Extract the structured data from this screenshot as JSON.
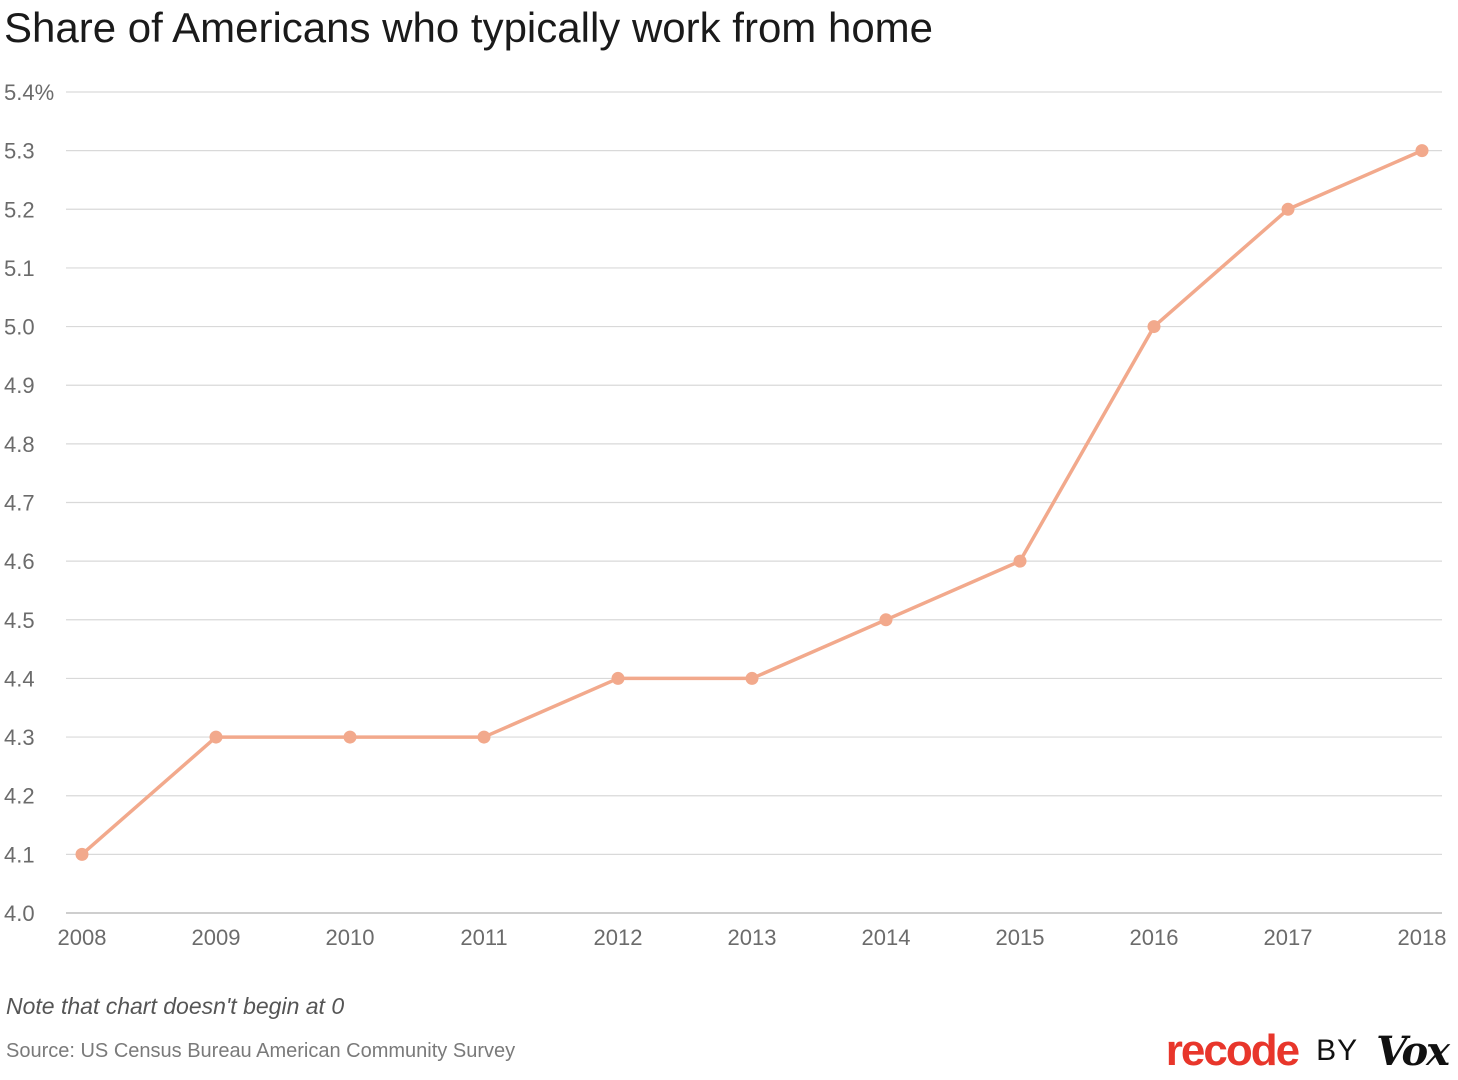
{
  "chart_data": {
    "type": "line",
    "title": "Share of Americans who typically work from home",
    "x": [
      "2008",
      "2009",
      "2010",
      "2011",
      "2012",
      "2013",
      "2014",
      "2015",
      "2016",
      "2017",
      "2018"
    ],
    "series": [
      {
        "values": [
          4.1,
          4.3,
          4.3,
          4.3,
          4.4,
          4.4,
          4.5,
          4.6,
          5.0,
          5.2,
          5.3
        ]
      }
    ],
    "yticks": [
      "4.0",
      "4.1",
      "4.2",
      "4.3",
      "4.4",
      "4.5",
      "4.6",
      "4.7",
      "4.8",
      "4.9",
      "5.0",
      "5.1",
      "5.2",
      "5.3",
      "5.4%"
    ],
    "ylim": [
      4.0,
      5.4
    ],
    "grid": true,
    "line_color": "#f2a98c",
    "grid_color": "#d9d9d9"
  },
  "footer": {
    "note": "Note that chart doesn't begin at 0",
    "source": "Source: US Census Bureau American Community Survey"
  },
  "logo": {
    "recode": "recode",
    "by": "BY",
    "vox": "Vox",
    "recode_color": "#e8362b",
    "text_color": "#111111"
  }
}
